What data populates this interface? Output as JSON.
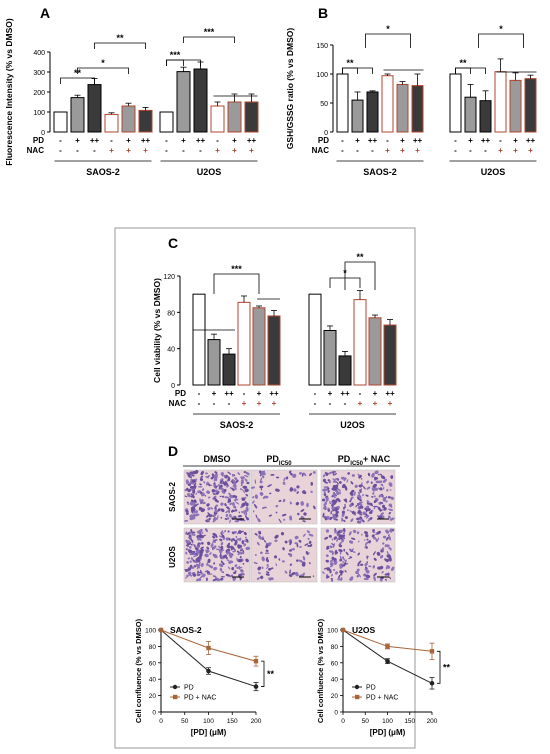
{
  "panels": {
    "A": "A",
    "B": "B",
    "C": "C",
    "D": "D"
  },
  "colors": {
    "dmso": "#ffffff",
    "pd_low": "#9a9a9a",
    "pd_high": "#3a3a3a",
    "nac_outline": "#b0452e",
    "pd_line": "#222222",
    "pd_nac_line": "#a8653a"
  },
  "row_labels": {
    "pd": "PD",
    "nac": "NAC"
  },
  "cell_lines": [
    "SAOS-2",
    "U2OS"
  ],
  "sig": {
    "double": "**",
    "triple": "***",
    "single": "*"
  },
  "chart_data": [
    {
      "id": "A",
      "type": "bar",
      "ylabel": "Fluorescence Intensity (% vs DMSO)",
      "ylim": [
        0,
        400
      ],
      "yticks": [
        0,
        100,
        200,
        300,
        400
      ],
      "pd_row": [
        "-",
        "+",
        "++",
        "-",
        "+",
        "++"
      ],
      "nac_row": [
        "-",
        "-",
        "-",
        "+",
        "+",
        "+"
      ],
      "groups": [
        {
          "name": "SAOS-2",
          "values": [
            100,
            172,
            237,
            88,
            130,
            108
          ],
          "errors": [
            0,
            12,
            30,
            8,
            14,
            15
          ]
        },
        {
          "name": "U2OS",
          "values": [
            100,
            302,
            315,
            130,
            150,
            150
          ],
          "errors": [
            0,
            22,
            35,
            20,
            40,
            40
          ]
        }
      ]
    },
    {
      "id": "B",
      "type": "bar",
      "ylabel": "GSH/GSSG ratio (% vs DMSO)",
      "ylim": [
        0,
        150
      ],
      "yticks": [
        0,
        50,
        100,
        150
      ],
      "pd_row": [
        "-",
        "+",
        "++",
        "-",
        "+",
        "++"
      ],
      "nac_row": [
        "-",
        "-",
        "-",
        "+",
        "+",
        "+"
      ],
      "groups": [
        {
          "name": "SAOS-2",
          "values": [
            100,
            55,
            69,
            97,
            82,
            80
          ],
          "errors": [
            0,
            14,
            2,
            3,
            5,
            20
          ]
        },
        {
          "name": "U2OS",
          "values": [
            100,
            60,
            54,
            104,
            89,
            92
          ],
          "errors": [
            0,
            22,
            17,
            22,
            13,
            6
          ]
        }
      ]
    },
    {
      "id": "C",
      "type": "bar",
      "ylabel": "Cell viability (% vs DMSO)",
      "ylim": [
        0,
        120
      ],
      "yticks": [
        0,
        40,
        80,
        120
      ],
      "pd_row": [
        "-",
        "+",
        "++",
        "-",
        "+",
        "++"
      ],
      "nac_row": [
        "-",
        "-",
        "-",
        "+",
        "+",
        "+"
      ],
      "groups": [
        {
          "name": "SAOS-2",
          "values": [
            100,
            50,
            34,
            91,
            85,
            76
          ],
          "errors": [
            0,
            6,
            6,
            7,
            2,
            6
          ]
        },
        {
          "name": "U2OS",
          "values": [
            100,
            60,
            32,
            94,
            74,
            66
          ],
          "errors": [
            0,
            5,
            5,
            10,
            3,
            6
          ]
        }
      ]
    },
    {
      "id": "D-SAOS-2",
      "type": "line",
      "title": "SAOS-2",
      "xlabel": "[PD] (μM)",
      "ylabel": "Cell confluence (% vs DMSO)",
      "xlim": [
        0,
        200
      ],
      "ylim": [
        0,
        100
      ],
      "xticks": [
        0,
        50,
        100,
        150,
        200
      ],
      "yticks": [
        0,
        20,
        40,
        60,
        80,
        100
      ],
      "x": [
        0,
        100,
        200
      ],
      "series": [
        {
          "name": "PD",
          "values": [
            100,
            50,
            31
          ],
          "errors": [
            0,
            4,
            5
          ]
        },
        {
          "name": "PD + NAC",
          "values": [
            100,
            78,
            62
          ],
          "errors": [
            0,
            8,
            6
          ]
        }
      ],
      "sig": "**"
    },
    {
      "id": "D-U2OS",
      "type": "line",
      "title": "U2OS",
      "xlabel": "[PD] (μM)",
      "ylabel": "Cell confluence (% vs DMSO)",
      "xlim": [
        0,
        200
      ],
      "ylim": [
        0,
        100
      ],
      "xticks": [
        0,
        50,
        100,
        150,
        200
      ],
      "yticks": [
        0,
        20,
        40,
        60,
        80,
        100
      ],
      "x": [
        0,
        100,
        200
      ],
      "series": [
        {
          "name": "PD",
          "values": [
            100,
            62,
            35
          ],
          "errors": [
            0,
            3,
            7
          ]
        },
        {
          "name": "PD + NAC",
          "values": [
            100,
            80,
            74
          ],
          "errors": [
            0,
            3,
            10
          ]
        }
      ],
      "sig": "**"
    }
  ],
  "micrographs": {
    "columns": [
      "DMSO",
      "PD",
      "IC50",
      "PD",
      "IC50",
      "+ NAC"
    ],
    "rows": [
      "SAOS-2",
      "U2OS"
    ]
  }
}
